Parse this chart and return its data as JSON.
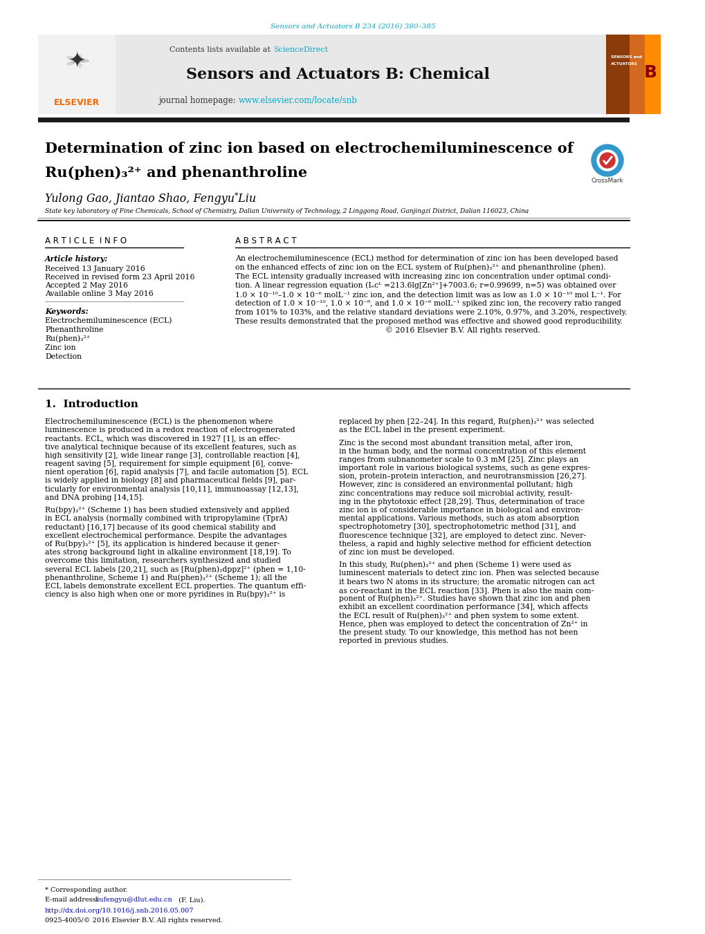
{
  "page_width": 10.2,
  "page_height": 13.51,
  "bg_color": "#ffffff",
  "top_citation": "Sensors and Actuators B 234 (2016) 380–385",
  "top_citation_color": "#00aacc",
  "journal_header_bg": "#e8e8e8",
  "journal_contents_text": "Contents lists available at ",
  "sciencedirect_text": "ScienceDirect",
  "sciencedirect_color": "#00aacc",
  "journal_name": "Sensors and Actuators B: Chemical",
  "journal_homepage_text": "journal homepage: ",
  "journal_homepage_url": "www.elsevier.com/locate/snb",
  "journal_homepage_url_color": "#00aacc",
  "elsevier_color": "#ff6600",
  "separator_bar_color": "#1a1a1a",
  "article_title_line1": "Determination of zinc ion based on electrochemiluminescence of",
  "article_title_line2": "Ru(phen)₃²⁺ and phenanthroline",
  "article_title_color": "#000000",
  "authors_text": "Yulong Gao, Jiantao Shao, Fengyu Liu",
  "affiliation": "State key laboratory of Fine Chemicals, School of Chemistry, Dalian University of Technology, 2 Linggong Road, Ganjingzi District, Dalian 116023, China",
  "article_info_label": "A R T I C L E  I N F O",
  "abstract_label": "A B S T R A C T",
  "article_history_label": "Article history:",
  "received_text": "Received 13 January 2016",
  "revised_text": "Received in revised form 23 April 2016",
  "accepted_text": "Accepted 2 May 2016",
  "available_text": "Available online 3 May 2016",
  "keywords_label": "Keywords:",
  "keywords": [
    "Electrochemiluminescence (ECL)",
    "Phenanthroline",
    "Ru(phen)₃²⁺",
    "Zinc ion",
    "Detection"
  ],
  "intro_section_label": "1.  Introduction",
  "footer_corresponding_text": "* Corresponding author.",
  "footer_email_label": "E-mail address: ",
  "footer_email": "liufengyu@dlut.edu.cn",
  "footer_email_color": "#0000cc",
  "footer_email_person": " (F. Liu).",
  "footer_doi": "http://dx.doi.org/10.1016/j.snb.2016.05.007",
  "footer_doi_color": "#0000cc",
  "footer_issn": "0925-4005/© 2016 Elsevier B.V. All rights reserved."
}
